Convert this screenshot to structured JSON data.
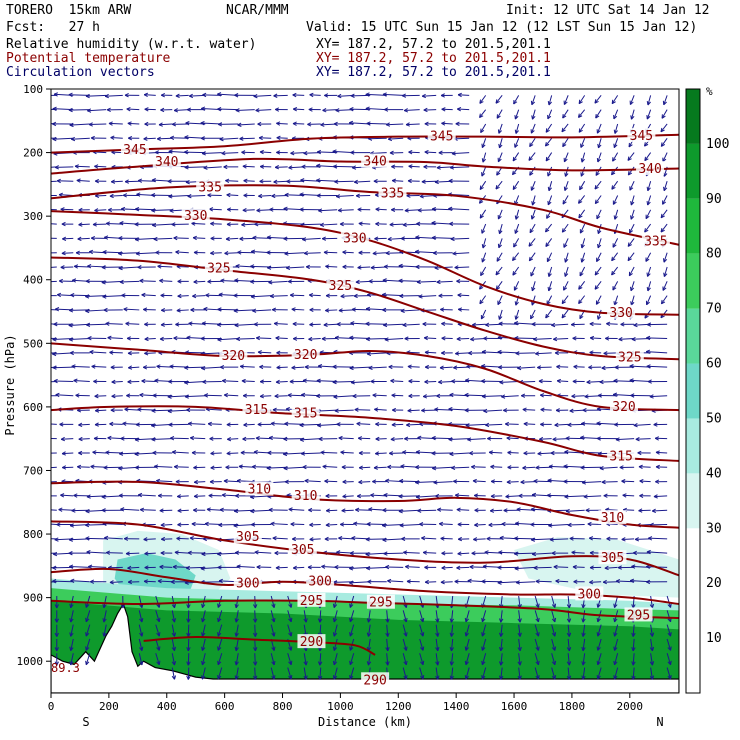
{
  "header": {
    "model": "TORERO  15km ARW",
    "center": "NCAR/MMM",
    "init": "Init: 12 UTC Sat 14 Jan 12",
    "fcst": "Fcst:   27 h",
    "valid": "Valid: 15 UTC Sun 15 Jan 12 (12 LST Sun 15 Jan 12)",
    "fields": [
      {
        "label": "Relative humidity (w.r.t. water)",
        "xy": "XY= 187.2, 57.2 to 201.5,201.1"
      },
      {
        "label": "Potential temperature",
        "xy": "XY= 187.2, 57.2 to 201.5,201.1"
      },
      {
        "label": "Circulation vectors",
        "xy": "XY= 187.2, 57.2 to 201.5,201.1"
      }
    ]
  },
  "colors": {
    "theta": "#8b0000",
    "vectors": "#1a1a8c",
    "terrain": "#000000",
    "rh_scale": [
      "#ffffff",
      "#ffffff",
      "#ffffff",
      "#d8f5f0",
      "#a8ebe0",
      "#6ed8c8",
      "#5ad89a",
      "#3ccc5c",
      "#1fb83c",
      "#0e9a2c",
      "#067a1e"
    ]
  },
  "chart_data": {
    "type": "cross-section",
    "xlabel": "Distance (km)",
    "ylabel": "Pressure (hPa)",
    "xlim": [
      0,
      2170
    ],
    "ylim": [
      1050,
      100
    ],
    "x_ticks": [
      0,
      200,
      400,
      600,
      800,
      1000,
      1200,
      1400,
      1600,
      1800,
      2000
    ],
    "y_ticks": [
      100,
      200,
      300,
      400,
      500,
      600,
      700,
      800,
      900,
      1000
    ],
    "x_left_label": "S",
    "x_right_label": "N",
    "colorbar": {
      "unit": "%",
      "ticks": [
        10,
        20,
        30,
        40,
        50,
        60,
        70,
        80,
        90,
        100
      ]
    },
    "theta_contours": [
      {
        "value": 345,
        "points": [
          [
            0,
            200
          ],
          [
            300,
            195
          ],
          [
            600,
            190
          ],
          [
            900,
            178
          ],
          [
            1200,
            175
          ],
          [
            1500,
            175
          ],
          [
            1800,
            176
          ],
          [
            2170,
            172
          ]
        ],
        "labels": [
          [
            290,
            196,
            "345"
          ],
          [
            1350,
            175,
            "345"
          ],
          [
            2040,
            174,
            "345"
          ]
        ]
      },
      {
        "value": 340,
        "points": [
          [
            0,
            233
          ],
          [
            300,
            222
          ],
          [
            700,
            210
          ],
          [
            1000,
            214
          ],
          [
            1300,
            215
          ],
          [
            1500,
            222
          ],
          [
            1800,
            228
          ],
          [
            2170,
            225
          ]
        ],
        "labels": [
          [
            400,
            215,
            "340"
          ],
          [
            1120,
            214,
            "340"
          ],
          [
            2070,
            226,
            "340"
          ]
        ]
      },
      {
        "value": 335,
        "points": [
          [
            0,
            272
          ],
          [
            400,
            255
          ],
          [
            800,
            252
          ],
          [
            1100,
            262
          ],
          [
            1400,
            268
          ],
          [
            1700,
            290
          ],
          [
            1900,
            318
          ],
          [
            2170,
            345
          ]
        ],
        "labels": [
          [
            550,
            255,
            "335"
          ],
          [
            1180,
            264,
            "335"
          ],
          [
            2090,
            340,
            "335"
          ]
        ]
      },
      {
        "value": 330,
        "points": [
          [
            0,
            292
          ],
          [
            300,
            298
          ],
          [
            600,
            305
          ],
          [
            900,
            318
          ],
          [
            1100,
            338
          ],
          [
            1300,
            370
          ],
          [
            1500,
            410
          ],
          [
            1700,
            438
          ],
          [
            1900,
            452
          ],
          [
            2170,
            455
          ]
        ],
        "labels": [
          [
            500,
            300,
            "330"
          ],
          [
            1050,
            335,
            "330"
          ],
          [
            1970,
            452,
            "330"
          ]
        ]
      },
      {
        "value": 325,
        "points": [
          [
            0,
            365
          ],
          [
            300,
            370
          ],
          [
            600,
            385
          ],
          [
            900,
            400
          ],
          [
            1100,
            420
          ],
          [
            1300,
            450
          ],
          [
            1500,
            480
          ],
          [
            1700,
            505
          ],
          [
            1900,
            520
          ],
          [
            2170,
            525
          ]
        ],
        "labels": [
          [
            580,
            382,
            "325"
          ],
          [
            1000,
            410,
            "325"
          ],
          [
            2000,
            522,
            "325"
          ]
        ]
      },
      {
        "value": 320,
        "points": [
          [
            0,
            500
          ],
          [
            300,
            510
          ],
          [
            600,
            520
          ],
          [
            900,
            518
          ],
          [
            1100,
            512
          ],
          [
            1300,
            520
          ],
          [
            1500,
            540
          ],
          [
            1700,
            575
          ],
          [
            1900,
            600
          ],
          [
            2170,
            605
          ]
        ],
        "labels": [
          [
            630,
            520,
            "320"
          ],
          [
            880,
            518,
            "320"
          ],
          [
            1980,
            600,
            "320"
          ]
        ]
      },
      {
        "value": 315,
        "points": [
          [
            0,
            605
          ],
          [
            200,
            600
          ],
          [
            500,
            600
          ],
          [
            800,
            610
          ],
          [
            1100,
            617
          ],
          [
            1400,
            630
          ],
          [
            1700,
            655
          ],
          [
            1900,
            677
          ],
          [
            2170,
            685
          ]
        ],
        "labels": [
          [
            710,
            605,
            "315"
          ],
          [
            880,
            610,
            "315"
          ],
          [
            1970,
            678,
            "315"
          ]
        ]
      },
      {
        "value": 310,
        "points": [
          [
            0,
            720
          ],
          [
            300,
            718
          ],
          [
            600,
            730
          ],
          [
            900,
            745
          ],
          [
            1200,
            748
          ],
          [
            1400,
            743
          ],
          [
            1600,
            750
          ],
          [
            1800,
            770
          ],
          [
            2000,
            785
          ],
          [
            2170,
            790
          ]
        ],
        "labels": [
          [
            720,
            730,
            "310"
          ],
          [
            880,
            740,
            "310"
          ],
          [
            1940,
            775,
            "310"
          ]
        ]
      },
      {
        "value": 305,
        "points": [
          [
            0,
            780
          ],
          [
            300,
            785
          ],
          [
            600,
            810
          ],
          [
            900,
            828
          ],
          [
            1200,
            840
          ],
          [
            1500,
            845
          ],
          [
            1800,
            835
          ],
          [
            2000,
            840
          ],
          [
            2170,
            865
          ]
        ],
        "labels": [
          [
            680,
            805,
            "305"
          ],
          [
            870,
            825,
            "305"
          ],
          [
            1940,
            838,
            "305"
          ]
        ]
      },
      {
        "value": 300,
        "points": [
          [
            0,
            860
          ],
          [
            200,
            855
          ],
          [
            400,
            868
          ],
          [
            600,
            880
          ],
          [
            800,
            875
          ],
          [
            1000,
            880
          ],
          [
            1300,
            890
          ],
          [
            1600,
            895
          ],
          [
            1800,
            895
          ],
          [
            2000,
            900
          ],
          [
            2170,
            910
          ]
        ],
        "labels": [
          [
            680,
            878,
            "300"
          ],
          [
            930,
            875,
            "300"
          ],
          [
            1860,
            895,
            "300"
          ]
        ]
      },
      {
        "value": 295,
        "points": [
          [
            0,
            905
          ],
          [
            300,
            910
          ],
          [
            600,
            905
          ],
          [
            900,
            905
          ],
          [
            1100,
            908
          ],
          [
            1400,
            912
          ],
          [
            1700,
            918
          ],
          [
            1900,
            928
          ],
          [
            2170,
            932
          ]
        ],
        "labels": [
          [
            900,
            905,
            "295"
          ],
          [
            1140,
            908,
            "295"
          ],
          [
            2030,
            928,
            "295"
          ]
        ]
      },
      {
        "value": 290,
        "points": [
          [
            320,
            968
          ],
          [
            500,
            962
          ],
          [
            700,
            966
          ],
          [
            900,
            970
          ],
          [
            1050,
            975
          ],
          [
            1120,
            990
          ]
        ],
        "labels": [
          [
            900,
            970,
            "290"
          ],
          [
            1120,
            1030,
            "290"
          ]
        ]
      }
    ],
    "corner_label": "89.3",
    "rh_regions": [
      {
        "rh": 35,
        "points": [
          [
            180,
            810
          ],
          [
            300,
            795
          ],
          [
            450,
            800
          ],
          [
            580,
            825
          ],
          [
            620,
            870
          ],
          [
            560,
            895
          ],
          [
            430,
            905
          ],
          [
            260,
            905
          ],
          [
            180,
            880
          ]
        ]
      },
      {
        "rh": 55,
        "points": [
          [
            230,
            840
          ],
          [
            330,
            830
          ],
          [
            430,
            840
          ],
          [
            500,
            865
          ],
          [
            480,
            890
          ],
          [
            380,
            900
          ],
          [
            260,
            895
          ],
          [
            220,
            870
          ]
        ]
      },
      {
        "rh": 35,
        "points": [
          [
            1600,
            825
          ],
          [
            1750,
            805
          ],
          [
            1950,
            808
          ],
          [
            2170,
            840
          ],
          [
            2170,
            900
          ],
          [
            1900,
            895
          ],
          [
            1650,
            870
          ]
        ]
      },
      {
        "rh": 45,
        "points": [
          [
            0,
            870
          ],
          [
            400,
            885
          ],
          [
            800,
            890
          ],
          [
            1200,
            895
          ],
          [
            1600,
            900
          ],
          [
            2000,
            905
          ],
          [
            2170,
            910
          ],
          [
            2170,
            1050
          ],
          [
            0,
            1050
          ]
        ]
      },
      {
        "rh": 75,
        "points": [
          [
            0,
            885
          ],
          [
            400,
            900
          ],
          [
            800,
            905
          ],
          [
            1200,
            910
          ],
          [
            1600,
            912
          ],
          [
            2000,
            918
          ],
          [
            2170,
            920
          ],
          [
            2170,
            1050
          ],
          [
            0,
            1050
          ]
        ]
      },
      {
        "rh": 95,
        "points": [
          [
            0,
            905
          ],
          [
            400,
            920
          ],
          [
            800,
            925
          ],
          [
            1200,
            935
          ],
          [
            1600,
            940
          ],
          [
            2000,
            945
          ],
          [
            2170,
            950
          ],
          [
            2170,
            1050
          ],
          [
            0,
            1050
          ]
        ]
      }
    ],
    "terrain": [
      [
        0,
        990
      ],
      [
        40,
        1000
      ],
      [
        80,
        1005
      ],
      [
        120,
        985
      ],
      [
        150,
        1000
      ],
      [
        190,
        960
      ],
      [
        210,
        945
      ],
      [
        230,
        925
      ],
      [
        250,
        910
      ],
      [
        265,
        930
      ],
      [
        280,
        985
      ],
      [
        300,
        1008
      ],
      [
        320,
        1000
      ],
      [
        360,
        1010
      ],
      [
        420,
        1015
      ],
      [
        460,
        1020
      ],
      [
        500,
        1025
      ],
      [
        560,
        1028
      ],
      [
        2170,
        1028
      ]
    ]
  }
}
